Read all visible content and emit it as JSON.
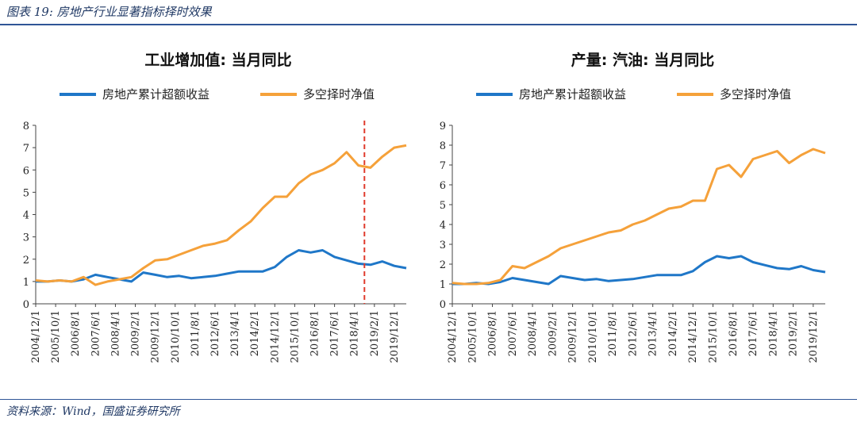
{
  "header": {
    "title": "图表 19: 房地产行业显著指标择时效果"
  },
  "footer": {
    "source": "资料来源：Wind，国盛证券研究所"
  },
  "colors": {
    "blue": "#1f77c8",
    "orange": "#f5a13a",
    "marker": "#e03b2c"
  },
  "chart_data": [
    {
      "type": "line",
      "title": "工业增加值: 当月同比",
      "ylim": [
        0,
        8
      ],
      "yticks": [
        0,
        1,
        2,
        3,
        4,
        5,
        6,
        7,
        8
      ],
      "xticks": [
        "2004/12/1",
        "2005/10/1",
        "2006/8/1",
        "2007/6/1",
        "2008/4/1",
        "2009/2/1",
        "2009/12/1",
        "2010/10/1",
        "2011/8/1",
        "2012/6/1",
        "2013/4/1",
        "2014/2/1",
        "2014/12/1",
        "2015/10/1",
        "2016/8/1",
        "2017/6/1",
        "2018/4/1",
        "2019/2/1",
        "2019/12/1"
      ],
      "vline_at": "2018/9/1",
      "series": [
        {
          "name": "房地产累计超额收益",
          "color": "blue",
          "x": [
            "2004/12/1",
            "2005/6/1",
            "2005/12/1",
            "2006/6/1",
            "2006/12/1",
            "2007/6/1",
            "2007/12/1",
            "2008/6/1",
            "2008/12/1",
            "2009/6/1",
            "2009/12/1",
            "2010/6/1",
            "2010/12/1",
            "2011/6/1",
            "2011/12/1",
            "2012/6/1",
            "2012/12/1",
            "2013/6/1",
            "2013/12/1",
            "2014/6/1",
            "2014/12/1",
            "2015/6/1",
            "2015/12/1",
            "2016/6/1",
            "2016/12/1",
            "2017/6/1",
            "2017/12/1",
            "2018/6/1",
            "2018/12/1",
            "2019/6/1",
            "2019/12/1",
            "2020/6/1"
          ],
          "values": [
            1.0,
            1.0,
            1.05,
            1.0,
            1.1,
            1.3,
            1.2,
            1.1,
            1.0,
            1.4,
            1.3,
            1.2,
            1.25,
            1.15,
            1.2,
            1.25,
            1.35,
            1.45,
            1.45,
            1.45,
            1.65,
            2.1,
            2.4,
            2.3,
            2.4,
            2.1,
            1.95,
            1.8,
            1.75,
            1.9,
            1.7,
            1.6
          ]
        },
        {
          "name": "多空择时净值",
          "color": "orange",
          "x": [
            "2004/12/1",
            "2005/6/1",
            "2005/12/1",
            "2006/6/1",
            "2006/12/1",
            "2007/6/1",
            "2007/12/1",
            "2008/6/1",
            "2008/12/1",
            "2009/6/1",
            "2009/12/1",
            "2010/6/1",
            "2010/12/1",
            "2011/6/1",
            "2011/12/1",
            "2012/6/1",
            "2012/12/1",
            "2013/6/1",
            "2013/12/1",
            "2014/6/1",
            "2014/12/1",
            "2015/6/1",
            "2015/12/1",
            "2016/6/1",
            "2016/12/1",
            "2017/6/1",
            "2017/12/1",
            "2018/6/1",
            "2018/12/1",
            "2019/6/1",
            "2019/12/1",
            "2020/6/1"
          ],
          "values": [
            1.05,
            1.0,
            1.05,
            1.0,
            1.2,
            0.85,
            1.0,
            1.1,
            1.2,
            1.6,
            1.95,
            2.0,
            2.2,
            2.4,
            2.6,
            2.7,
            2.85,
            3.3,
            3.7,
            4.3,
            4.8,
            4.8,
            5.4,
            5.8,
            6.0,
            6.3,
            6.8,
            6.2,
            6.1,
            6.6,
            7.0,
            7.1
          ]
        }
      ]
    },
    {
      "type": "line",
      "title": "产量: 汽油: 当月同比",
      "ylim": [
        0,
        9
      ],
      "yticks": [
        0,
        1,
        2,
        3,
        4,
        5,
        6,
        7,
        8,
        9
      ],
      "xticks": [
        "2004/12/1",
        "2005/10/1",
        "2006/8/1",
        "2007/6/1",
        "2008/4/1",
        "2009/2/1",
        "2009/12/1",
        "2010/10/1",
        "2011/8/1",
        "2012/6/1",
        "2013/4/1",
        "2014/2/1",
        "2014/12/1",
        "2015/10/1",
        "2016/8/1",
        "2017/6/1",
        "2018/4/1",
        "2019/2/1",
        "2019/12/1"
      ],
      "series": [
        {
          "name": "房地产累计超额收益",
          "color": "blue",
          "x": [
            "2004/12/1",
            "2005/6/1",
            "2005/12/1",
            "2006/6/1",
            "2006/12/1",
            "2007/6/1",
            "2007/12/1",
            "2008/6/1",
            "2008/12/1",
            "2009/6/1",
            "2009/12/1",
            "2010/6/1",
            "2010/12/1",
            "2011/6/1",
            "2011/12/1",
            "2012/6/1",
            "2012/12/1",
            "2013/6/1",
            "2013/12/1",
            "2014/6/1",
            "2014/12/1",
            "2015/6/1",
            "2015/12/1",
            "2016/6/1",
            "2016/12/1",
            "2017/6/1",
            "2017/12/1",
            "2018/6/1",
            "2018/12/1",
            "2019/6/1",
            "2019/12/1",
            "2020/6/1"
          ],
          "values": [
            1.0,
            1.0,
            1.05,
            1.0,
            1.1,
            1.3,
            1.2,
            1.1,
            1.0,
            1.4,
            1.3,
            1.2,
            1.25,
            1.15,
            1.2,
            1.25,
            1.35,
            1.45,
            1.45,
            1.45,
            1.65,
            2.1,
            2.4,
            2.3,
            2.4,
            2.1,
            1.95,
            1.8,
            1.75,
            1.9,
            1.7,
            1.6
          ]
        },
        {
          "name": "多空择时净值",
          "color": "orange",
          "x": [
            "2004/12/1",
            "2005/6/1",
            "2005/12/1",
            "2006/6/1",
            "2006/12/1",
            "2007/6/1",
            "2007/12/1",
            "2008/6/1",
            "2008/12/1",
            "2009/6/1",
            "2009/12/1",
            "2010/6/1",
            "2010/12/1",
            "2011/6/1",
            "2011/12/1",
            "2012/6/1",
            "2012/12/1",
            "2013/6/1",
            "2013/12/1",
            "2014/6/1",
            "2014/12/1",
            "2015/6/1",
            "2015/12/1",
            "2016/6/1",
            "2016/12/1",
            "2017/6/1",
            "2017/12/1",
            "2018/6/1",
            "2018/12/1",
            "2019/6/1",
            "2019/12/1",
            "2020/6/1"
          ],
          "values": [
            1.05,
            1.0,
            1.0,
            1.05,
            1.2,
            1.9,
            1.8,
            2.1,
            2.4,
            2.8,
            3.0,
            3.2,
            3.4,
            3.6,
            3.7,
            4.0,
            4.2,
            4.5,
            4.8,
            4.9,
            5.2,
            5.2,
            6.8,
            7.0,
            6.4,
            7.3,
            7.5,
            7.7,
            7.1,
            7.5,
            7.8,
            7.6
          ]
        }
      ]
    }
  ]
}
